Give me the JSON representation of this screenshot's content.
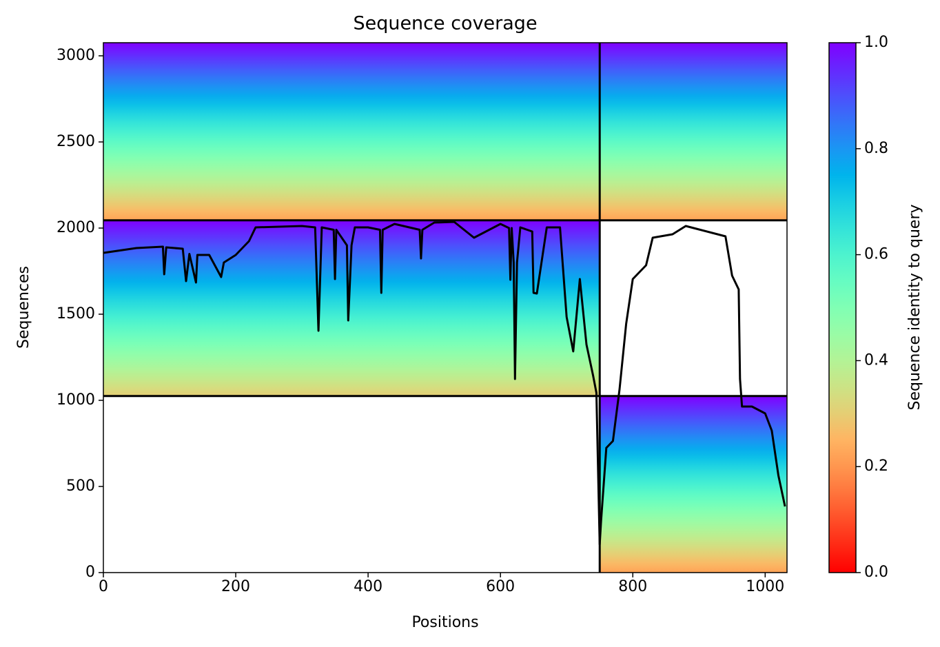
{
  "chart_data": {
    "type": "coverage",
    "title": "Sequence coverage",
    "xlabel": "Positions",
    "ylabel": "Sequences",
    "colorbar_label": "Sequence identity to query",
    "colormap": "rainbow_r",
    "xlim": [
      0,
      1033
    ],
    "ylim": [
      0,
      3076
    ],
    "xticks": [
      0,
      200,
      400,
      600,
      800,
      1000
    ],
    "yticks": [
      0,
      500,
      1000,
      1500,
      2000,
      2500,
      3000
    ],
    "clim": [
      0,
      1
    ],
    "cticks": [
      {
        "value": 0,
        "label": "0.0"
      },
      {
        "value": 0.2,
        "label": "0.2"
      },
      {
        "value": 0.4,
        "label": "0.4"
      },
      {
        "value": 0.6,
        "label": "0.6"
      },
      {
        "value": 0.8,
        "label": "0.8"
      },
      {
        "value": 1,
        "label": "1.0"
      }
    ],
    "blocks": [
      {
        "x": [
          0,
          1033
        ],
        "y": [
          2045,
          3076
        ],
        "identity": [
          0.22,
          1.0
        ]
      },
      {
        "x": [
          0,
          750
        ],
        "y": [
          1025,
          2045
        ],
        "identity": [
          0.3,
          1.0
        ]
      },
      {
        "x": [
          750,
          1033
        ],
        "y": [
          0,
          1025
        ],
        "identity": [
          0.22,
          1.0
        ]
      }
    ],
    "dividers": {
      "x": [
        750
      ],
      "y": [
        1025,
        2045
      ]
    },
    "coverage": {
      "color": "#000000",
      "x": [
        0,
        50,
        90,
        92,
        95,
        120,
        125,
        130,
        140,
        142,
        160,
        178,
        182,
        200,
        220,
        230,
        300,
        320,
        325,
        330,
        348,
        350,
        352,
        368,
        370,
        375,
        380,
        400,
        418,
        420,
        422,
        440,
        478,
        480,
        482,
        500,
        530,
        560,
        600,
        613,
        615,
        617,
        620,
        622,
        625,
        630,
        648,
        650,
        655,
        670,
        690,
        700,
        710,
        720,
        730,
        740,
        745,
        750,
        752,
        760,
        770,
        780,
        790,
        800,
        820,
        830,
        860,
        880,
        900,
        940,
        950,
        960,
        962,
        965,
        980,
        1000,
        1010,
        1020,
        1030
      ],
      "values": [
        1856,
        1884,
        1892,
        1732,
        1888,
        1880,
        1692,
        1850,
        1684,
        1844,
        1844,
        1716,
        1800,
        1844,
        1924,
        2004,
        2012,
        2004,
        1404,
        2004,
        1990,
        1704,
        1990,
        1900,
        1464,
        1900,
        2004,
        2004,
        1990,
        1624,
        1990,
        2024,
        1990,
        1824,
        1990,
        2032,
        2036,
        1944,
        2024,
        2000,
        1700,
        2000,
        1800,
        1124,
        1800,
        2004,
        1980,
        1624,
        1620,
        2004,
        2004,
        1484,
        1284,
        1704,
        1324,
        1144,
        1044,
        164,
        300,
        724,
        764,
        1064,
        1444,
        1704,
        1784,
        1944,
        1964,
        2012,
        1992,
        1952,
        1724,
        1644,
        1124,
        964,
        964,
        924,
        824,
        564,
        384
      ]
    }
  }
}
